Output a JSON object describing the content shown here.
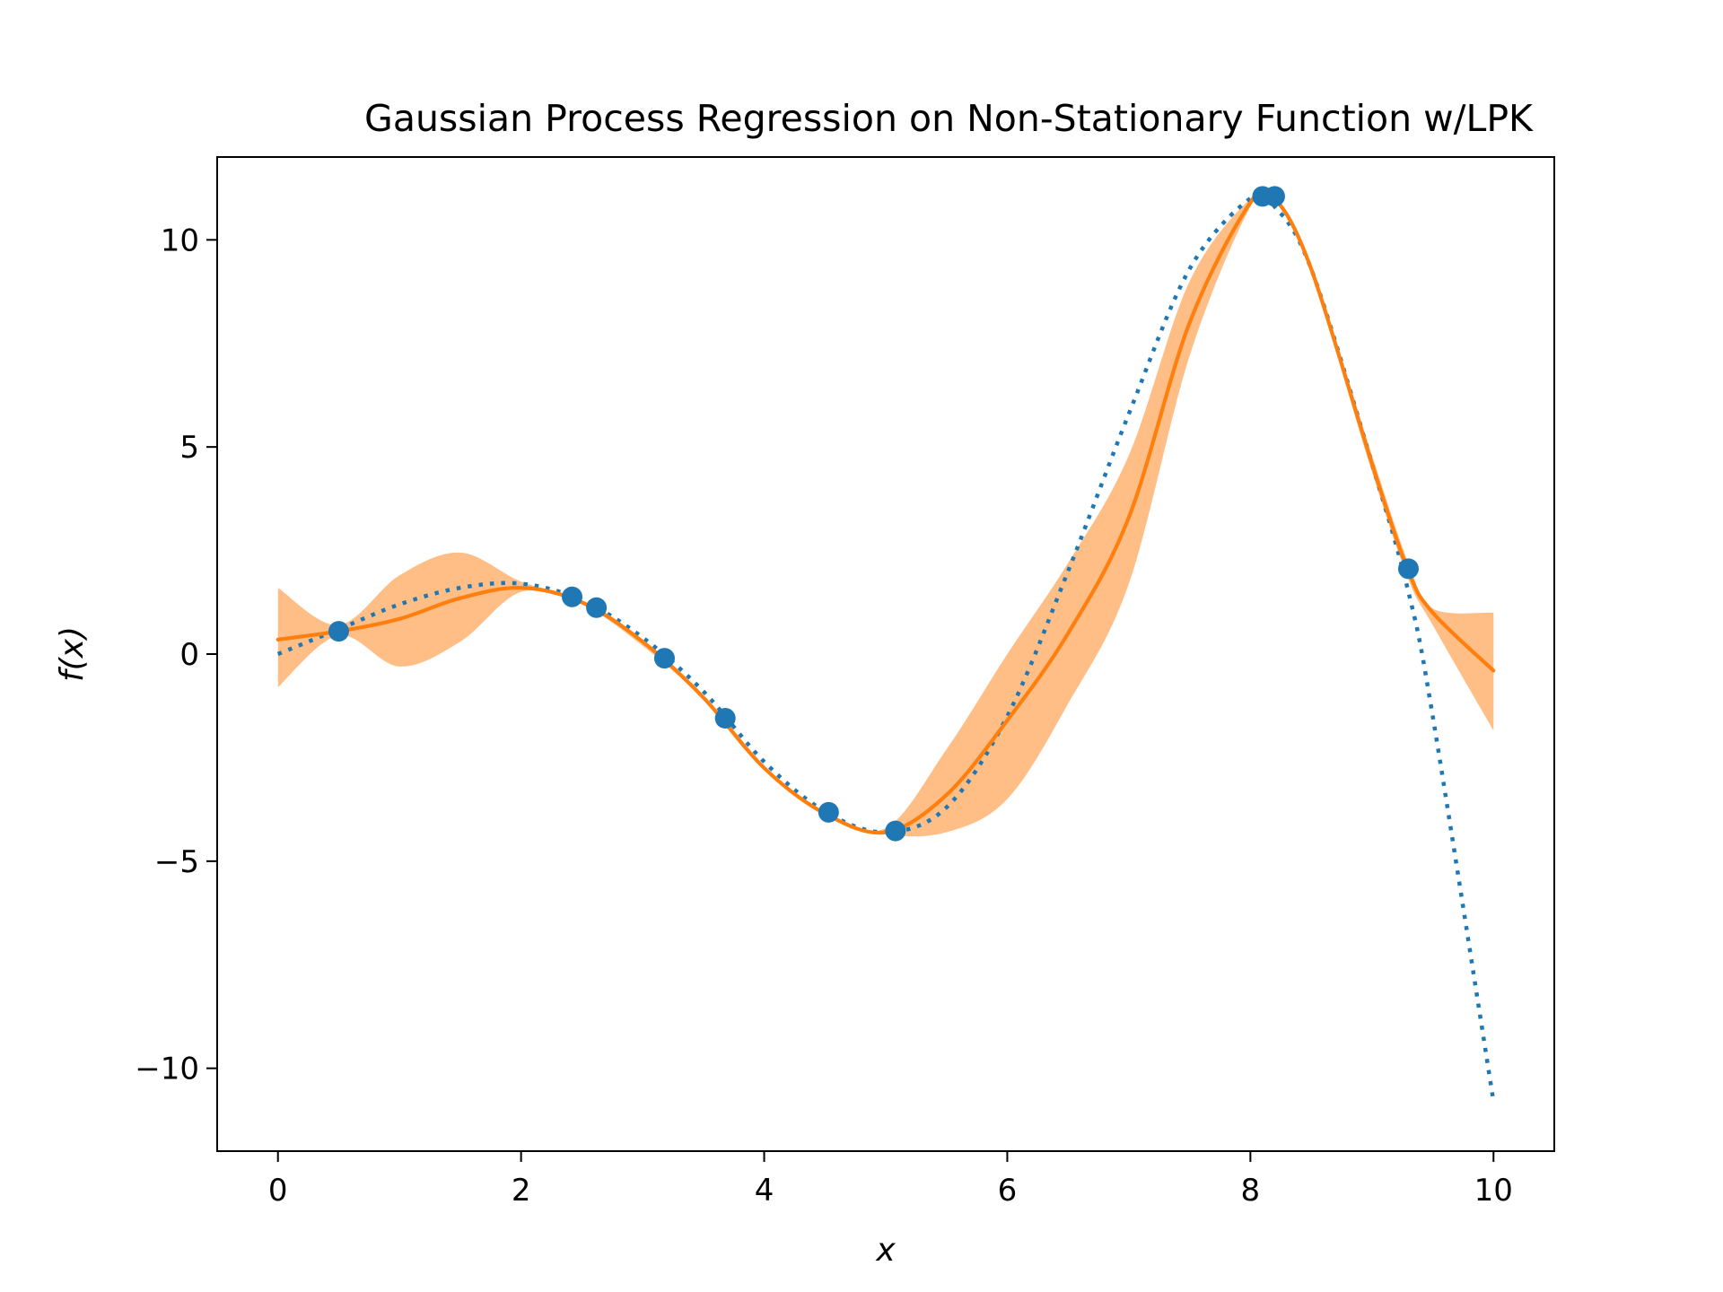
{
  "chart_data": {
    "type": "line",
    "title": "Gaussian Process Regression on Non-Stationary Function w/LPK",
    "xlabel": "x",
    "ylabel": "f(x)",
    "xlim": [
      -0.5,
      10.5
    ],
    "ylim": [
      -12,
      12
    ],
    "x_ticks": [
      0,
      2,
      4,
      6,
      8,
      10
    ],
    "x_tick_labels": [
      "0",
      "2",
      "4",
      "6",
      "8",
      "10"
    ],
    "y_ticks": [
      -10,
      -5,
      0,
      5,
      10
    ],
    "y_tick_labels": [
      "−10",
      "−5",
      "0",
      "5",
      "10"
    ],
    "grid": false,
    "legend": "none",
    "colors": {
      "true_function": "#1f77b4",
      "observations": "#1f77b4",
      "prediction": "#ff7f0e",
      "band": "#ffbe86"
    },
    "true_function": {
      "style": "dotted",
      "x": [
        0,
        0.5,
        1.0,
        1.5,
        2.0,
        2.5,
        3.0,
        3.5,
        4.0,
        4.5,
        5.0,
        5.5,
        6.0,
        6.5,
        7.0,
        7.5,
        8.0,
        8.2,
        8.5,
        9.0,
        9.3,
        9.5,
        10.0
      ],
      "y": [
        0.0,
        0.6,
        1.2,
        1.6,
        1.7,
        1.3,
        0.4,
        -0.9,
        -2.6,
        -3.8,
        -4.3,
        -3.7,
        -1.5,
        2.0,
        5.8,
        9.3,
        11.0,
        10.8,
        9.3,
        4.6,
        1.5,
        -1.5,
        -10.8
      ]
    },
    "observations": {
      "x": [
        0.5,
        2.42,
        2.62,
        3.18,
        3.68,
        4.53,
        5.08,
        8.1,
        8.2,
        9.3
      ],
      "y": [
        0.55,
        1.38,
        1.12,
        -0.1,
        -1.55,
        -3.82,
        -4.27,
        11.05,
        11.05,
        2.06
      ]
    },
    "prediction": {
      "x": [
        0,
        0.5,
        1.0,
        1.5,
        2.0,
        2.5,
        3.0,
        3.5,
        4.0,
        4.5,
        5.0,
        5.5,
        6.0,
        6.5,
        7.0,
        7.5,
        8.0,
        8.2,
        8.5,
        9.0,
        9.3,
        9.5,
        10.0
      ],
      "y": [
        0.35,
        0.55,
        0.85,
        1.35,
        1.6,
        1.25,
        0.3,
        -1.05,
        -2.75,
        -3.85,
        -4.3,
        -3.4,
        -1.6,
        0.5,
        3.3,
        8.0,
        10.9,
        11.0,
        9.3,
        4.6,
        2.0,
        1.0,
        -0.4
      ]
    },
    "band": {
      "x": [
        0,
        0.5,
        1.0,
        1.5,
        2.0,
        2.5,
        3.0,
        3.5,
        4.0,
        4.5,
        5.0,
        5.5,
        6.0,
        6.5,
        7.0,
        7.5,
        8.0,
        8.2,
        8.5,
        9.0,
        9.3,
        9.5,
        10.0
      ],
      "upper": [
        1.6,
        0.7,
        1.9,
        2.45,
        1.75,
        1.3,
        0.3,
        -1.0,
        -2.7,
        -3.8,
        -4.2,
        -2.3,
        0.0,
        2.2,
        4.8,
        9.0,
        11.0,
        11.05,
        9.4,
        4.8,
        2.2,
        1.1,
        1.0
      ],
      "lower": [
        -0.8,
        0.45,
        -0.3,
        0.3,
        1.5,
        1.2,
        0.2,
        -1.1,
        -2.8,
        -3.9,
        -4.35,
        -4.3,
        -3.5,
        -1.2,
        1.7,
        7.2,
        10.8,
        10.95,
        9.2,
        4.4,
        1.8,
        0.7,
        -1.85
      ]
    }
  }
}
